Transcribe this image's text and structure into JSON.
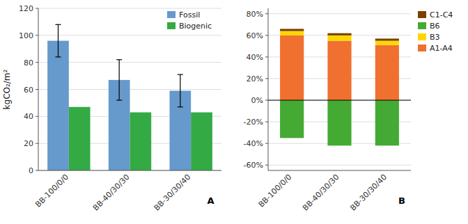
{
  "chart_data": [
    {
      "type": "bar",
      "categories": [
        "BB-100/0/0",
        "BB-40/30/30",
        "BB-30/30/40"
      ],
      "series": [
        {
          "name": "Fossil",
          "color": "#6699CC",
          "values": [
            96,
            67,
            59
          ],
          "errors": [
            12,
            15,
            12
          ]
        },
        {
          "name": "Biogenic",
          "color": "#33AA44",
          "values": [
            47,
            43,
            43
          ]
        }
      ],
      "y_label": "kgCO₂/m²",
      "ylim": [
        0,
        120
      ],
      "yticks": [
        0,
        20,
        40,
        60,
        80,
        100,
        120
      ],
      "grid": true,
      "legend": "top-right",
      "annotations": [
        "A"
      ]
    },
    {
      "type": "bar",
      "stacked": true,
      "categories": [
        "BB-100/0/0",
        "BB-40/30/30",
        "BB-30/30/40"
      ],
      "series": [
        {
          "name": "C1-C4",
          "color": "#7B3F00",
          "values": [
            2,
            2,
            2
          ]
        },
        {
          "name": "B6",
          "color": "#44AA33",
          "values": [
            -35,
            -42,
            -42
          ]
        },
        {
          "name": "B3",
          "color": "#FFD700",
          "values": [
            4,
            5,
            4
          ]
        },
        {
          "name": "A1-A4",
          "color": "#F07030",
          "values": [
            60,
            55,
            51
          ]
        }
      ],
      "ylim": [
        -65,
        85
      ],
      "yticks": [
        {
          "value": -60,
          "label": "-60%"
        },
        {
          "value": -40,
          "label": "-40%"
        },
        {
          "value": -20,
          "label": "-20%"
        },
        {
          "value": 0,
          "label": "0%"
        },
        {
          "value": 20,
          "label": "20%"
        },
        {
          "value": 40,
          "label": "40%"
        },
        {
          "value": 60,
          "label": "60%"
        },
        {
          "value": 80,
          "label": "80%"
        }
      ],
      "grid": true,
      "legend": "top-right",
      "annotations": [
        "B"
      ]
    }
  ]
}
